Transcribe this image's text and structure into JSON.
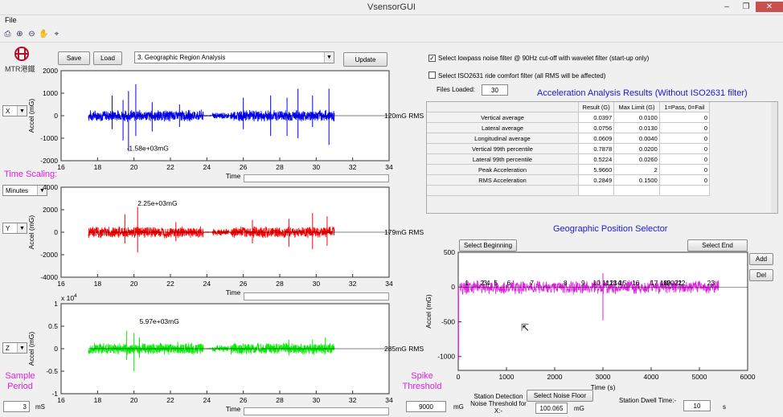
{
  "window": {
    "title": "VsensorGUI",
    "minimize": "–",
    "maximize": "❐",
    "close": "✕"
  },
  "menu": {
    "file": "File"
  },
  "toolbar": {
    "icons": [
      "print-icon",
      "zoom-in-icon",
      "zoom-out-icon",
      "pan-hand-icon",
      "data-cursor-icon"
    ]
  },
  "logo": {
    "text": "MTR港鐵"
  },
  "controls": {
    "save": "Save",
    "load": "Load",
    "mode_select": "3. Geographic Region Analysis",
    "update": "Update",
    "lowpass_checked": true,
    "lowpass_label": "Select lowpass noise filter @ 90Hz cut-off with wavelet filter (start-up only)",
    "iso_checked": false,
    "iso_label": "Select ISO2631 ride comfort filter (all RMS will be affected)",
    "files_loaded_label": "Files Loaded:",
    "files_loaded": "30"
  },
  "left_panel": {
    "axis_x": "X",
    "axis_y": "Y",
    "axis_z": "Z",
    "time_scaling_label": "Time Scaling:",
    "time_scaling": "Minutes",
    "sample_period_label": "Sample Period",
    "sample_period": "3",
    "sample_unit": "mS"
  },
  "plots": {
    "x": {
      "ylabel": "Accel (mG)",
      "xlabel": "Time",
      "yticks": [
        "2000",
        "1000",
        "0",
        "-1000",
        "-2000"
      ],
      "xticks": [
        "16",
        "18",
        "20",
        "22",
        "24",
        "26",
        "28",
        "30",
        "32",
        "34"
      ],
      "annotation": "-1.58e+03mG",
      "rms": "120mG RMS",
      "color": "#0000ff"
    },
    "y": {
      "ylabel": "Accel (mG)",
      "xlabel": "Time",
      "yticks": [
        "4000",
        "2000",
        "0",
        "-2000",
        "-4000"
      ],
      "xticks": [
        "16",
        "18",
        "20",
        "22",
        "24",
        "26",
        "28",
        "30",
        "32",
        "34"
      ],
      "annotation": "2.25e+03mG",
      "rms": "179mG RMS",
      "color": "#ff0000"
    },
    "z": {
      "ylabel": "Accel (mG)",
      "xlabel": "Time",
      "yticks": [
        "1",
        "0.5",
        "0",
        "-0.5",
        "-1"
      ],
      "exponent": "x 10",
      "exponent_power": "4",
      "xticks": [
        "16",
        "18",
        "20",
        "22",
        "24",
        "26",
        "28",
        "30",
        "32",
        "34"
      ],
      "annotation": "5.97e+03mG",
      "rms": "285mG RMS",
      "color": "#00ee00"
    }
  },
  "results": {
    "title": "Acceleration Analysis Results (Without ISO2631 filter)",
    "headers": [
      "Result (G)",
      "Max Limit (G)",
      "1=Pass, 0=Fail"
    ],
    "rows": [
      {
        "label": "Vertical average",
        "result": "0.0397",
        "limit": "0.0100",
        "pass": "0"
      },
      {
        "label": "Lateral average",
        "result": "0.0756",
        "limit": "0.0130",
        "pass": "0"
      },
      {
        "label": "Longitudinal average",
        "result": "0.0609",
        "limit": "0.0040",
        "pass": "0"
      },
      {
        "label": "Vertical 99th percentile",
        "result": "0.7878",
        "limit": "0.0200",
        "pass": "0"
      },
      {
        "label": "Lateral 99th percentile",
        "result": "0.5224",
        "limit": "0.0260",
        "pass": "0"
      },
      {
        "label": "Peak Acceleration",
        "result": "5.9660",
        "limit": "2",
        "pass": "0"
      },
      {
        "label": "RMS Acceleration",
        "result": "0.2849",
        "limit": "0.1500",
        "pass": "0"
      }
    ]
  },
  "geo": {
    "title": "Geographic Position Selector",
    "select_beginning": "Select Beginning",
    "select_end": "Select End",
    "add": "Add",
    "del": "Del",
    "ylabel": "Accel (mG)",
    "xlabel": "Time (s)",
    "yticks": [
      "500",
      "0",
      "-500",
      "-1000"
    ],
    "xticks": [
      "0",
      "1000",
      "2000",
      "3000",
      "4000",
      "5000",
      "6000"
    ],
    "stations": [
      "1",
      "2",
      "3",
      "4",
      "5",
      "6",
      "7",
      "8",
      "9",
      "10",
      "11",
      "12",
      "13",
      "14",
      "15",
      "16",
      "17",
      "18",
      "19",
      "20",
      "21",
      "22",
      "23"
    ]
  },
  "bottom": {
    "spike_label": "Spike Threshold",
    "spike_value": "9000",
    "spike_unit": "mG",
    "station_detect_label": "Station Detection Noise Threshold for X:-",
    "select_noise_floor": "Select Noise Floor",
    "noise_value": "100.065",
    "noise_unit": "mG",
    "dwell_label": "Station Dwell Time:-",
    "dwell_value": "10",
    "dwell_unit": "s"
  },
  "colors": {
    "x_trace": "#0000ff",
    "y_trace": "#ff0000",
    "z_trace": "#00ee00",
    "geo_trace": "#e020e0",
    "magenta_label": "#e020e0",
    "blue_title": "#1a1ad0"
  }
}
